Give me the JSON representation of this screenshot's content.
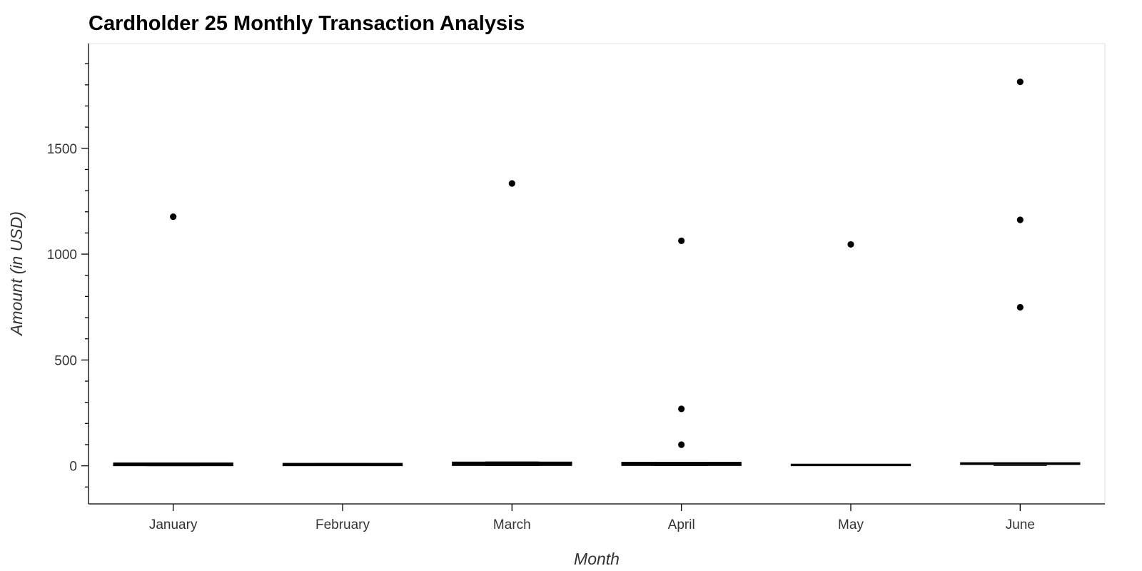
{
  "chart_data": {
    "type": "box",
    "title": "Cardholder 25 Monthly Transaction Analysis",
    "xlabel": "Month",
    "ylabel": "Amount (in USD)",
    "categories": [
      "January",
      "February",
      "March",
      "April",
      "May",
      "June"
    ],
    "ylim": [
      -180,
      1995
    ],
    "y_ticks": [
      0,
      500,
      1000,
      1500
    ],
    "y_minor_step": 100,
    "grid": false,
    "legend": "none",
    "boxes": [
      {
        "category": "January",
        "whisker_low": 0.5,
        "q1": 2,
        "median": 6,
        "q3": 12,
        "whisker_high": 13
      },
      {
        "category": "February",
        "whisker_low": 1,
        "q1": 2,
        "median": 5,
        "q3": 10,
        "whisker_high": 11
      },
      {
        "category": "March",
        "whisker_low": 1,
        "q1": 3,
        "median": 10,
        "q3": 16,
        "whisker_high": 18
      },
      {
        "category": "April",
        "whisker_low": 1,
        "q1": 3,
        "median": 10,
        "q3": 15,
        "whisker_high": 17
      },
      {
        "category": "May",
        "whisker_low": 1,
        "q1": 2,
        "median": 4,
        "q3": 6,
        "whisker_high": 7
      },
      {
        "category": "June",
        "whisker_low": 1,
        "q1": 8,
        "median": 11,
        "q3": 13,
        "whisker_high": 14
      }
    ],
    "outliers": [
      {
        "category": "January",
        "value": 1177
      },
      {
        "category": "March",
        "value": 1334
      },
      {
        "category": "April",
        "value": 1063
      },
      {
        "category": "April",
        "value": 269
      },
      {
        "category": "April",
        "value": 100
      },
      {
        "category": "May",
        "value": 1046
      },
      {
        "category": "June",
        "value": 1814
      },
      {
        "category": "June",
        "value": 1162
      },
      {
        "category": "June",
        "value": 749
      }
    ],
    "colors": {
      "box_fill": "#6a1b9a",
      "box_stroke": "#000000",
      "outlier": "#000000",
      "axis": "#000000",
      "frame": "#e5e5e5"
    }
  }
}
